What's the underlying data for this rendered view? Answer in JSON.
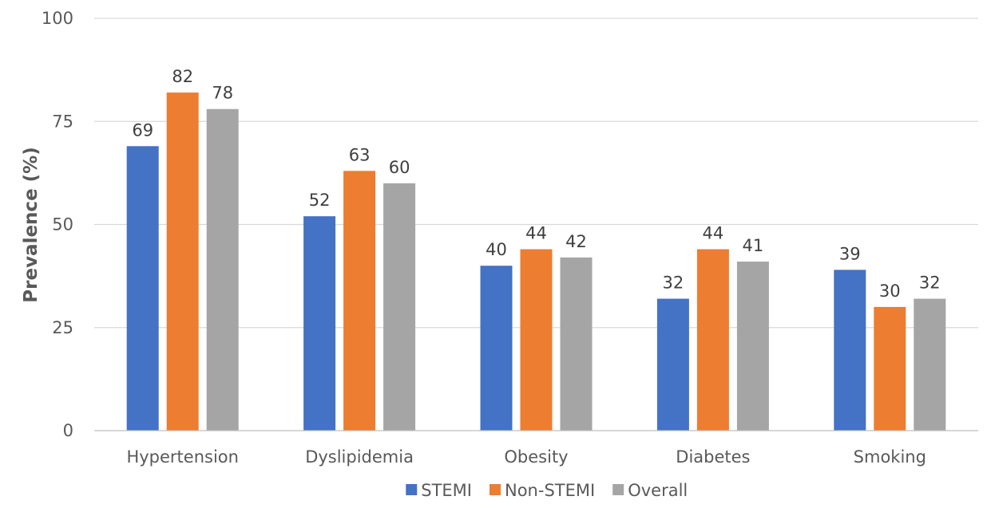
{
  "chart_data": {
    "type": "bar",
    "title": "",
    "xlabel": "",
    "ylabel": "Prevalence (%)",
    "ylim": [
      0,
      100
    ],
    "yticks": [
      0,
      25,
      50,
      75,
      100
    ],
    "grid": true,
    "legend_position": "bottom",
    "categories": [
      "Hypertension",
      "Dyslipidemia",
      "Obesity",
      "Diabetes",
      "Smoking"
    ],
    "series": [
      {
        "name": "STEMI",
        "color": "#4472C4",
        "values": [
          69,
          52,
          40,
          32,
          39
        ]
      },
      {
        "name": "Non-STEMI",
        "color": "#ED7D31",
        "values": [
          82,
          63,
          44,
          44,
          30
        ]
      },
      {
        "name": "Overall",
        "color": "#A5A5A5",
        "values": [
          78,
          60,
          42,
          41,
          32
        ]
      }
    ]
  }
}
